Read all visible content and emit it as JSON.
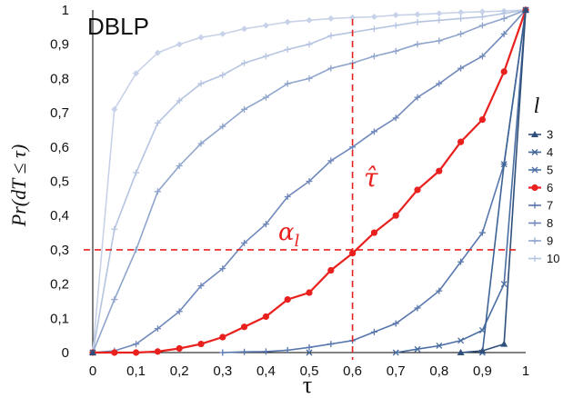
{
  "chart_data": {
    "type": "line",
    "title": "DBLP",
    "xlabel": "τ",
    "ylabel": "Pr(dT ≤ τ)",
    "xlim": [
      0,
      1
    ],
    "ylim": [
      0,
      1
    ],
    "x_ticks": [
      "0",
      "0,1",
      "0,2",
      "0,3",
      "0,4",
      "0,5",
      "0,6",
      "0,7",
      "0,8",
      "0,9",
      "1"
    ],
    "y_ticks": [
      "0",
      "0,1",
      "0,2",
      "0,3",
      "0,4",
      "0,5",
      "0,6",
      "0,7",
      "0,8",
      "0,9",
      "1"
    ],
    "legend_title": "l",
    "legend_position": "right",
    "grid": false,
    "x": [
      0,
      0.05,
      0.1,
      0.15,
      0.2,
      0.25,
      0.3,
      0.35,
      0.4,
      0.45,
      0.5,
      0.55,
      0.6,
      0.65,
      0.7,
      0.75,
      0.8,
      0.85,
      0.9,
      0.95,
      1
    ],
    "series": [
      {
        "name": "3",
        "color": "#2e4f7a",
        "marker": "triangle",
        "values": [
          0,
          null,
          null,
          null,
          null,
          null,
          null,
          null,
          null,
          null,
          null,
          null,
          null,
          null,
          null,
          null,
          null,
          0.0,
          0.005,
          0.025,
          1.0
        ]
      },
      {
        "name": "4",
        "color": "#3d6396",
        "marker": "x",
        "values": [
          0,
          null,
          null,
          null,
          null,
          null,
          null,
          null,
          null,
          null,
          0.0,
          null,
          null,
          null,
          null,
          null,
          null,
          null,
          0.0,
          0.55,
          1.0
        ]
      },
      {
        "name": "5",
        "color": "#4a6ea2",
        "marker": "x",
        "values": [
          0,
          null,
          null,
          null,
          null,
          null,
          null,
          null,
          null,
          null,
          null,
          null,
          null,
          null,
          0.0,
          0.01,
          0.02,
          0.035,
          0.065,
          0.2,
          1.0
        ]
      },
      {
        "name": "6",
        "color": "#e8201e",
        "marker": "circle",
        "values": [
          0,
          0.0,
          0.0,
          0.003,
          0.012,
          0.025,
          0.045,
          0.075,
          0.105,
          0.155,
          0.175,
          0.24,
          0.29,
          0.35,
          0.4,
          0.475,
          0.53,
          0.615,
          0.68,
          0.82,
          1.0
        ]
      },
      {
        "name": "7",
        "color": "#5877ae",
        "marker": "plus",
        "values": [
          0,
          null,
          null,
          null,
          null,
          null,
          0.0,
          0.002,
          0.003,
          0.007,
          0.015,
          0.025,
          0.035,
          0.06,
          0.085,
          0.13,
          0.18,
          0.265,
          0.35,
          0.55,
          1.0
        ]
      },
      {
        "name": "8",
        "color": "#7088bb",
        "marker": "plus",
        "values": [
          0,
          0.005,
          0.025,
          0.07,
          0.12,
          0.195,
          0.245,
          0.32,
          0.375,
          0.455,
          0.5,
          0.56,
          0.6,
          0.645,
          0.685,
          0.745,
          0.785,
          0.83,
          0.865,
          0.93,
          1.0
        ]
      },
      {
        "name": "9",
        "color": "#8fa5cc",
        "marker": "plus",
        "values": [
          0,
          0.155,
          0.3,
          0.47,
          0.545,
          0.61,
          0.66,
          0.71,
          0.745,
          0.785,
          0.8,
          0.83,
          0.845,
          0.865,
          0.88,
          0.9,
          0.91,
          0.93,
          0.955,
          0.975,
          1.0
        ]
      },
      {
        "name": "10",
        "color": "#b5c4e0",
        "marker": "plus",
        "values": [
          0,
          0.36,
          0.525,
          0.67,
          0.735,
          0.785,
          0.81,
          0.845,
          0.865,
          0.885,
          0.9,
          0.925,
          0.935,
          0.945,
          0.955,
          0.965,
          0.97,
          0.975,
          0.98,
          0.99,
          1.0
        ]
      },
      {
        "name": "",
        "color": "#c7d2e8",
        "marker": "diamond",
        "legend_hidden": true,
        "values": [
          0,
          0.71,
          0.815,
          0.875,
          0.9,
          0.92,
          0.93,
          0.945,
          0.955,
          0.965,
          0.97,
          0.975,
          0.978,
          0.98,
          0.985,
          0.987,
          0.99,
          0.993,
          0.995,
          0.997,
          1.0
        ]
      }
    ],
    "legend_entries": [
      "3",
      "4",
      "5",
      "6",
      "7",
      "8",
      "9",
      "10"
    ],
    "annotations": {
      "alpha_label": "αl",
      "tau_hat_label": "τ̂",
      "color": "#e8201e",
      "v_line_x": 0.6,
      "h_line_y": 0.3
    }
  }
}
